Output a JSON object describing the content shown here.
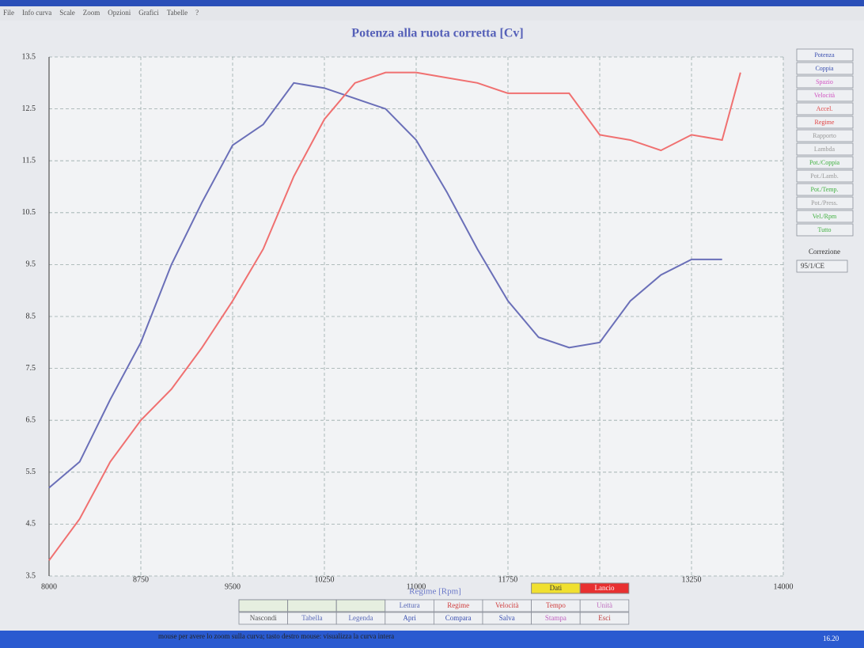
{
  "chart_data": {
    "type": "line",
    "title": "Potenza alla ruota corretta [Cv]",
    "x_label": "Regime [Rpm]",
    "x": [
      8000,
      8250,
      8500,
      8750,
      9000,
      9250,
      9500,
      9750,
      10000,
      10250,
      10500,
      10750,
      11000,
      11250,
      11500,
      11750,
      12000,
      12250,
      12500,
      12750,
      13000,
      13250,
      13500,
      13650
    ],
    "series": [
      {
        "color": "#6a6fb8",
        "values": [
          5.2,
          5.7,
          6.9,
          8.0,
          9.5,
          10.7,
          11.8,
          12.2,
          13.0,
          12.9,
          12.7,
          12.5,
          11.9,
          10.9,
          9.8,
          8.8,
          8.1,
          7.9,
          8.0,
          8.8,
          9.3,
          9.6,
          9.6,
          null
        ]
      },
      {
        "color": "#f07070",
        "values": [
          3.8,
          4.6,
          5.7,
          6.5,
          7.1,
          7.9,
          8.8,
          9.8,
          11.2,
          12.3,
          13.0,
          13.2,
          13.2,
          13.1,
          13.0,
          12.8,
          12.8,
          12.8,
          12.0,
          11.9,
          11.7,
          12.0,
          11.9,
          13.2
        ]
      }
    ],
    "xlim": [
      8000,
      14000
    ],
    "xticks": [
      8000,
      8750,
      9500,
      10250,
      11000,
      11750,
      12500,
      13250,
      14000
    ],
    "ylim": [
      3.5,
      13.5
    ],
    "yticks": [
      3.5,
      4.5,
      5.5,
      6.5,
      7.5,
      8.5,
      9.5,
      10.5,
      11.5,
      12.5,
      13.5
    ],
    "grid": true
  },
  "ui": {
    "menu": [
      "File",
      "Info curva",
      "Scale",
      "Zoom",
      "Opzioni",
      "Grafici",
      "Tabelle",
      "?"
    ],
    "side_buttons": [
      "Potenza",
      "Coppia",
      "Spazio",
      "Velocità",
      "Accel.",
      "Regime",
      "Rapporto",
      "Lambda",
      "Pot./Coppia",
      "Pot./Lamb.",
      "Pot./Temp.",
      "Pot./Press.",
      "Vel./Rpm",
      "Tutto"
    ],
    "correction_label": "Correzione",
    "correction_value": "95/1/CE",
    "dati": "Dati",
    "lancio": "Lancio",
    "bottom_row1": [
      "Lettura",
      "Regime",
      "Velocità",
      "Tempo",
      "Unità"
    ],
    "bottom_row2": [
      "Nascondi",
      "Tabella",
      "Legenda",
      "Apri",
      "Compara",
      "Salva",
      "Stampa",
      "Esci"
    ],
    "status": "mouse per avere lo zoom sulla curva; tasto destro mouse: visualizza la curva intera",
    "clock": "16.20"
  }
}
